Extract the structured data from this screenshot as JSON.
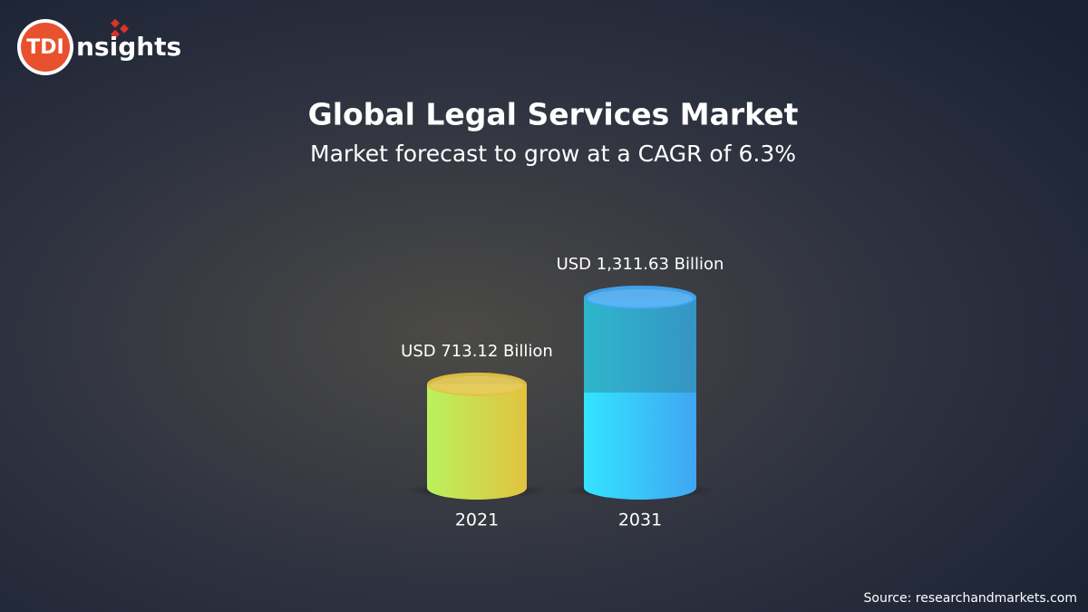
{
  "logo": {
    "badge": "TDI",
    "text": "nsights"
  },
  "chart_data": {
    "type": "cylinder",
    "title": "Global Legal Services Market",
    "subtitle": "Market forecast to grow at a CAGR of 6.3%",
    "categories": [
      "2021",
      "2031"
    ],
    "values": [
      713.12,
      1311.63
    ],
    "value_labels": [
      "USD 713.12 Billion",
      "USD 1,311.63 Billion"
    ],
    "colors": [
      [
        "#b9f25e",
        "#e2c23f"
      ],
      [
        "#33e4ff",
        "#3fa6f2"
      ]
    ],
    "source": "Source: researchandmarkets.com"
  }
}
